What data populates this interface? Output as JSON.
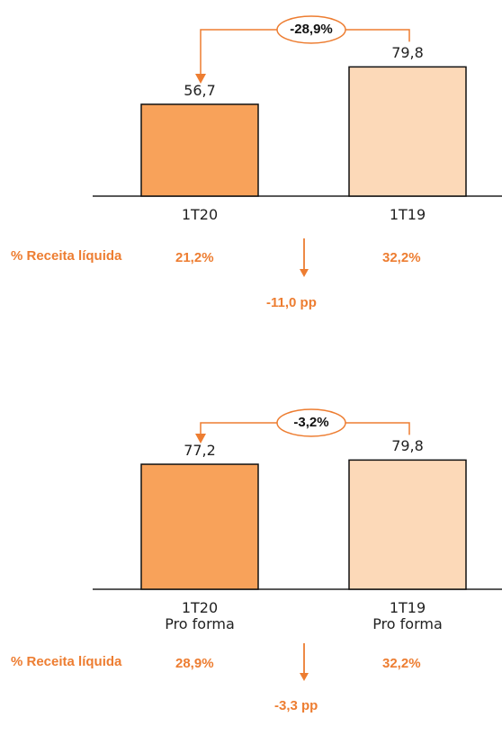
{
  "chart_data": [
    {
      "type": "bar",
      "categories": [
        "1T20",
        "1T19"
      ],
      "values": [
        56.7,
        79.8
      ],
      "value_labels": [
        "56,7",
        "79,8"
      ],
      "ylim": [
        0,
        100
      ],
      "bar_colors": [
        "#F8A25A",
        "#FCD9B8"
      ],
      "change_label": "-28,9%",
      "margin_label": "% Receita líquida",
      "margins": [
        "21,2%",
        "32,2%"
      ],
      "margin_change": "-11,0 pp"
    },
    {
      "type": "bar",
      "categories": [
        "1T20",
        "1T19"
      ],
      "category_sublabels": [
        "Pro forma",
        "Pro forma"
      ],
      "values": [
        77.2,
        79.8
      ],
      "value_labels": [
        "77,2",
        "79,8"
      ],
      "ylim": [
        0,
        100
      ],
      "bar_colors": [
        "#F8A25A",
        "#FCD9B8"
      ],
      "change_label": "-3,2%",
      "margin_label": "% Receita líquida",
      "margins": [
        "28,9%",
        "32,2%"
      ],
      "margin_change": "-3,3 pp"
    }
  ],
  "colors": {
    "accent": "#ED7D31",
    "bar_current": "#F8A25A",
    "bar_previous": "#FCD9B8",
    "outline": "#111111"
  }
}
